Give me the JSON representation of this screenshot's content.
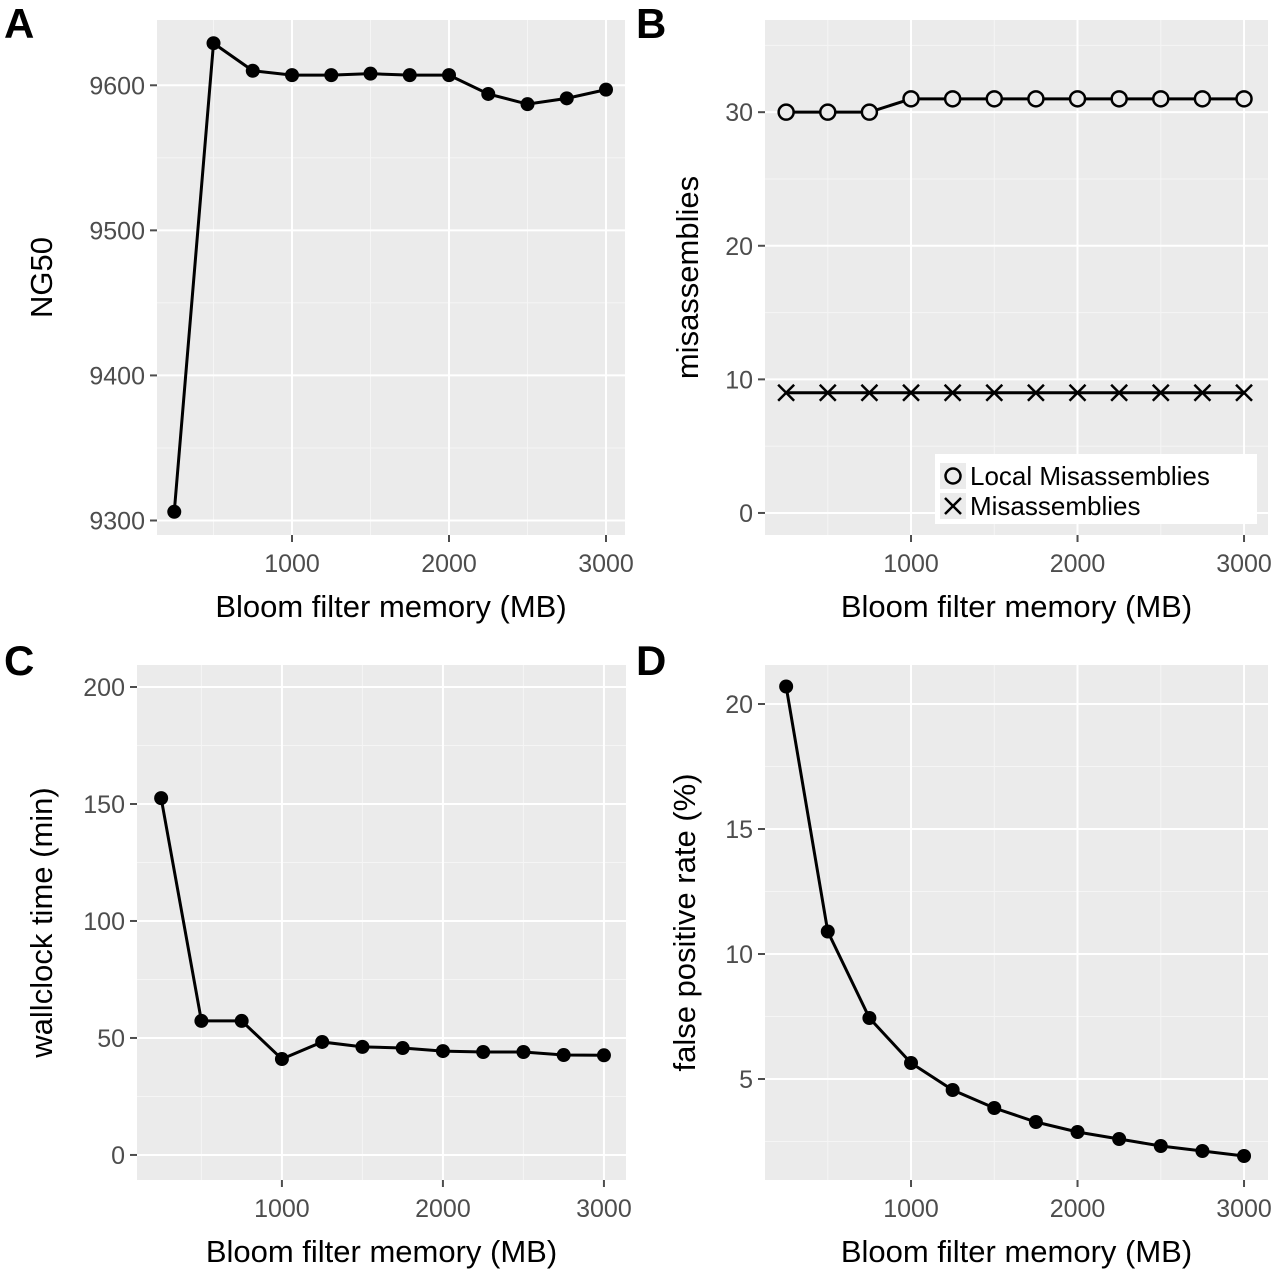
{
  "chart_data": [
    {
      "panel_label": "A",
      "type": "line",
      "xlabel": "Bloom filter memory (MB)",
      "ylabel": "NG50",
      "xlim": [
        140,
        3121
      ],
      "ylim": [
        9290,
        9645
      ],
      "xticks": [
        1000,
        2000,
        3000
      ],
      "yticks": [
        9300,
        9400,
        9500,
        9600
      ],
      "grid": true,
      "series": [
        {
          "marker": "filled-circle",
          "x": [
            250,
            500,
            750,
            1000,
            1250,
            1500,
            1750,
            2000,
            2250,
            2500,
            2750,
            3000
          ],
          "y": [
            9306,
            9629,
            9610,
            9607,
            9607,
            9608,
            9607,
            9607,
            9594,
            9587,
            9591,
            9597
          ]
        }
      ]
    },
    {
      "panel_label": "B",
      "type": "line",
      "xlabel": "Bloom filter memory (MB)",
      "ylabel": "misassemblies",
      "xlim": [
        123,
        3144
      ],
      "ylim": [
        -1.65,
        36.9
      ],
      "xticks": [
        1000,
        2000,
        3000
      ],
      "yticks": [
        0,
        10,
        20,
        30
      ],
      "grid": true,
      "legend_position": "bottom-right",
      "series": [
        {
          "name": "Local Misassemblies",
          "marker": "open-circle",
          "x": [
            250,
            500,
            750,
            1000,
            1250,
            1500,
            1750,
            2000,
            2250,
            2500,
            2750,
            3000
          ],
          "y": [
            30,
            30,
            30,
            31,
            31,
            31,
            31,
            31,
            31,
            31,
            31,
            31
          ]
        },
        {
          "name": "Misassemblies",
          "marker": "cross",
          "x": [
            250,
            500,
            750,
            1000,
            1250,
            1500,
            1750,
            2000,
            2250,
            2500,
            2750,
            3000
          ],
          "y": [
            9,
            9,
            9,
            9,
            9,
            9,
            9,
            9,
            9,
            9,
            9,
            9
          ]
        }
      ]
    },
    {
      "panel_label": "C",
      "type": "line",
      "xlabel": "Bloom filter memory (MB)",
      "ylabel": "wallclock time (min)",
      "xlim": [
        100,
        3137
      ],
      "ylim": [
        -10.7,
        209.4
      ],
      "xticks": [
        1000,
        2000,
        3000
      ],
      "yticks": [
        0,
        50,
        100,
        150,
        200
      ],
      "grid": true,
      "series": [
        {
          "marker": "filled-circle",
          "x": [
            250,
            500,
            750,
            1000,
            1250,
            1500,
            1750,
            2000,
            2250,
            2500,
            2750,
            3000
          ],
          "y": [
            152.5,
            57.3,
            57.3,
            41,
            48.3,
            46.2,
            45.7,
            44.4,
            44,
            44,
            42.7,
            42.6
          ]
        }
      ]
    },
    {
      "panel_label": "D",
      "type": "line",
      "xlabel": "Bloom filter memory (MB)",
      "ylabel": "false positive rate (%)",
      "xlim": [
        123,
        3144
      ],
      "ylim": [
        0.96,
        21.56
      ],
      "xticks": [
        1000,
        2000,
        3000
      ],
      "yticks": [
        5,
        10,
        15,
        20
      ],
      "grid": true,
      "series": [
        {
          "marker": "filled-circle",
          "x": [
            250,
            500,
            750,
            1000,
            1250,
            1500,
            1750,
            2000,
            2250,
            2500,
            2750,
            3000
          ],
          "y": [
            20.7,
            10.9,
            7.44,
            5.64,
            4.56,
            3.84,
            3.28,
            2.88,
            2.6,
            2.32,
            2.12,
            1.92
          ]
        }
      ]
    }
  ]
}
